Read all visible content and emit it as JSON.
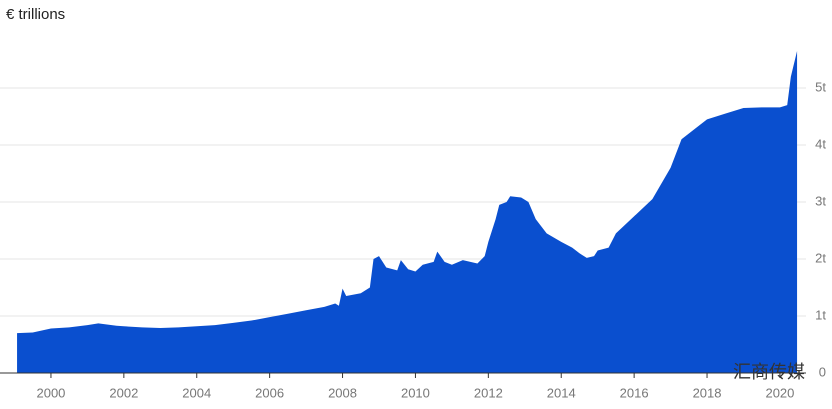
{
  "chart_data": {
    "type": "area",
    "y_label": "€ trillions",
    "color": "#0a4fcf",
    "grid": true,
    "watermark": "汇商传媒",
    "x": [
      1999.07,
      1999.5,
      2000,
      2000.5,
      2001,
      2001.3,
      2001.8,
      2002,
      2002.5,
      2003,
      2003.5,
      2004,
      2004.5,
      2005,
      2005.5,
      2006,
      2006.5,
      2007,
      2007.5,
      2007.8,
      2007.9,
      2008,
      2008.1,
      2008.5,
      2008.75,
      2008.85,
      2009,
      2009.2,
      2009.5,
      2009.6,
      2009.8,
      2010,
      2010.2,
      2010.5,
      2010.6,
      2010.8,
      2011,
      2011.3,
      2011.7,
      2011.9,
      2012,
      2012.2,
      2012.3,
      2012.5,
      2012.6,
      2012.9,
      2013.1,
      2013.3,
      2013.6,
      2014,
      2014.3,
      2014.5,
      2014.7,
      2014.9,
      2015,
      2015.3,
      2015.5,
      2016,
      2016.5,
      2017,
      2017.3,
      2017.7,
      2018,
      2018.5,
      2019,
      2019.5,
      2020,
      2020.2,
      2020.3,
      2020.47
    ],
    "values": [
      0.7,
      0.71,
      0.78,
      0.8,
      0.84,
      0.87,
      0.83,
      0.82,
      0.8,
      0.79,
      0.8,
      0.82,
      0.84,
      0.88,
      0.92,
      0.98,
      1.04,
      1.1,
      1.16,
      1.22,
      1.18,
      1.48,
      1.35,
      1.4,
      1.5,
      2.0,
      2.05,
      1.85,
      1.8,
      1.98,
      1.82,
      1.78,
      1.9,
      1.95,
      2.13,
      1.95,
      1.9,
      1.98,
      1.92,
      2.05,
      2.3,
      2.7,
      2.95,
      3.0,
      3.1,
      3.08,
      3.0,
      2.7,
      2.45,
      2.3,
      2.2,
      2.1,
      2.02,
      2.05,
      2.15,
      2.2,
      2.45,
      2.75,
      3.05,
      3.6,
      4.1,
      4.3,
      4.45,
      4.55,
      4.65,
      4.66,
      4.66,
      4.7,
      5.2,
      5.65
    ],
    "xlim": [
      1999,
      2020.6
    ],
    "xticks": [
      2000,
      2002,
      2004,
      2006,
      2008,
      2010,
      2012,
      2014,
      2016,
      2018,
      2020
    ],
    "ylim": [
      0,
      5.75
    ],
    "yticks": [
      0,
      {
        "value": 1,
        "label": "1t"
      },
      {
        "value": 2,
        "label": "2t"
      },
      {
        "value": 3,
        "label": "3t"
      },
      {
        "value": 4,
        "label": "4t"
      },
      {
        "value": 5,
        "label": "5t"
      }
    ]
  }
}
